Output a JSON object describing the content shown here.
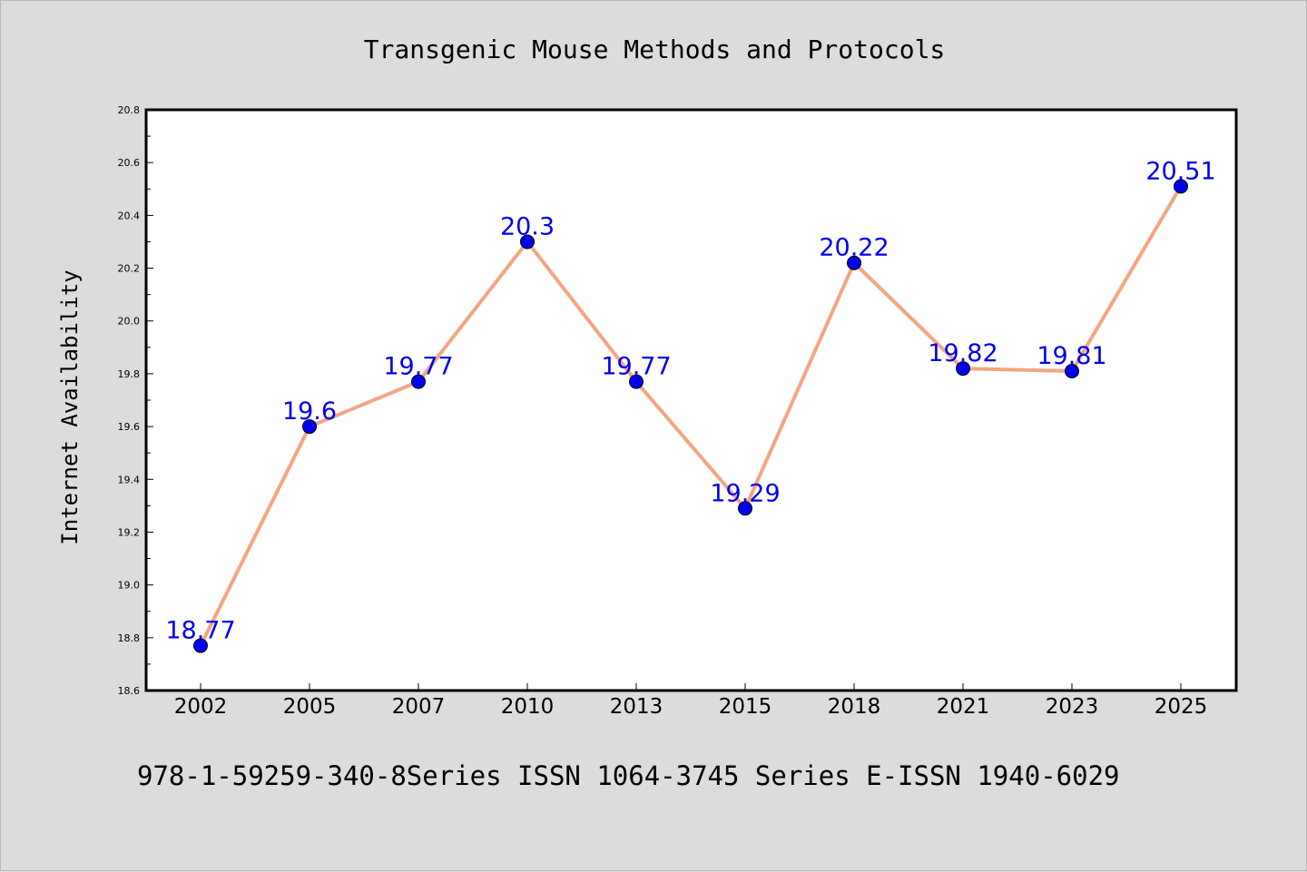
{
  "chart_data": {
    "type": "line",
    "title": "Transgenic Mouse Methods and Protocols",
    "xlabel": "",
    "ylabel": "Internet Availability",
    "categories": [
      "2002",
      "2005",
      "2007",
      "2010",
      "2013",
      "2015",
      "2018",
      "2021",
      "2023",
      "2025"
    ],
    "series": [
      {
        "values": [
          18.77,
          19.6,
          19.77,
          20.3,
          19.77,
          19.29,
          20.22,
          19.82,
          19.81,
          20.51
        ],
        "labels": [
          "18.77",
          "19.6",
          "19.77",
          "20.3",
          "19.77",
          "19.29",
          "20.22",
          "19.82",
          "19.81",
          "20.51"
        ],
        "line_color": "#f4a582",
        "marker_color": "#0000ee",
        "label_color": "#0000ee"
      }
    ],
    "ylim": [
      18.6,
      20.8
    ],
    "yticks": [
      "18.6",
      "18.8",
      "19.0",
      "19.2",
      "19.4",
      "19.6",
      "19.8",
      "20.0",
      "20.2",
      "20.4",
      "20.6",
      "20.8"
    ],
    "grid": false,
    "legend": "none",
    "footer": "978-1-59259-340-8Series ISSN 1064-3745 Series E-ISSN 1940-6029"
  },
  "colors": {
    "background": "#dcdcdc",
    "plot_background": "#ffffff",
    "axis": "#000000",
    "text": "#000000"
  }
}
